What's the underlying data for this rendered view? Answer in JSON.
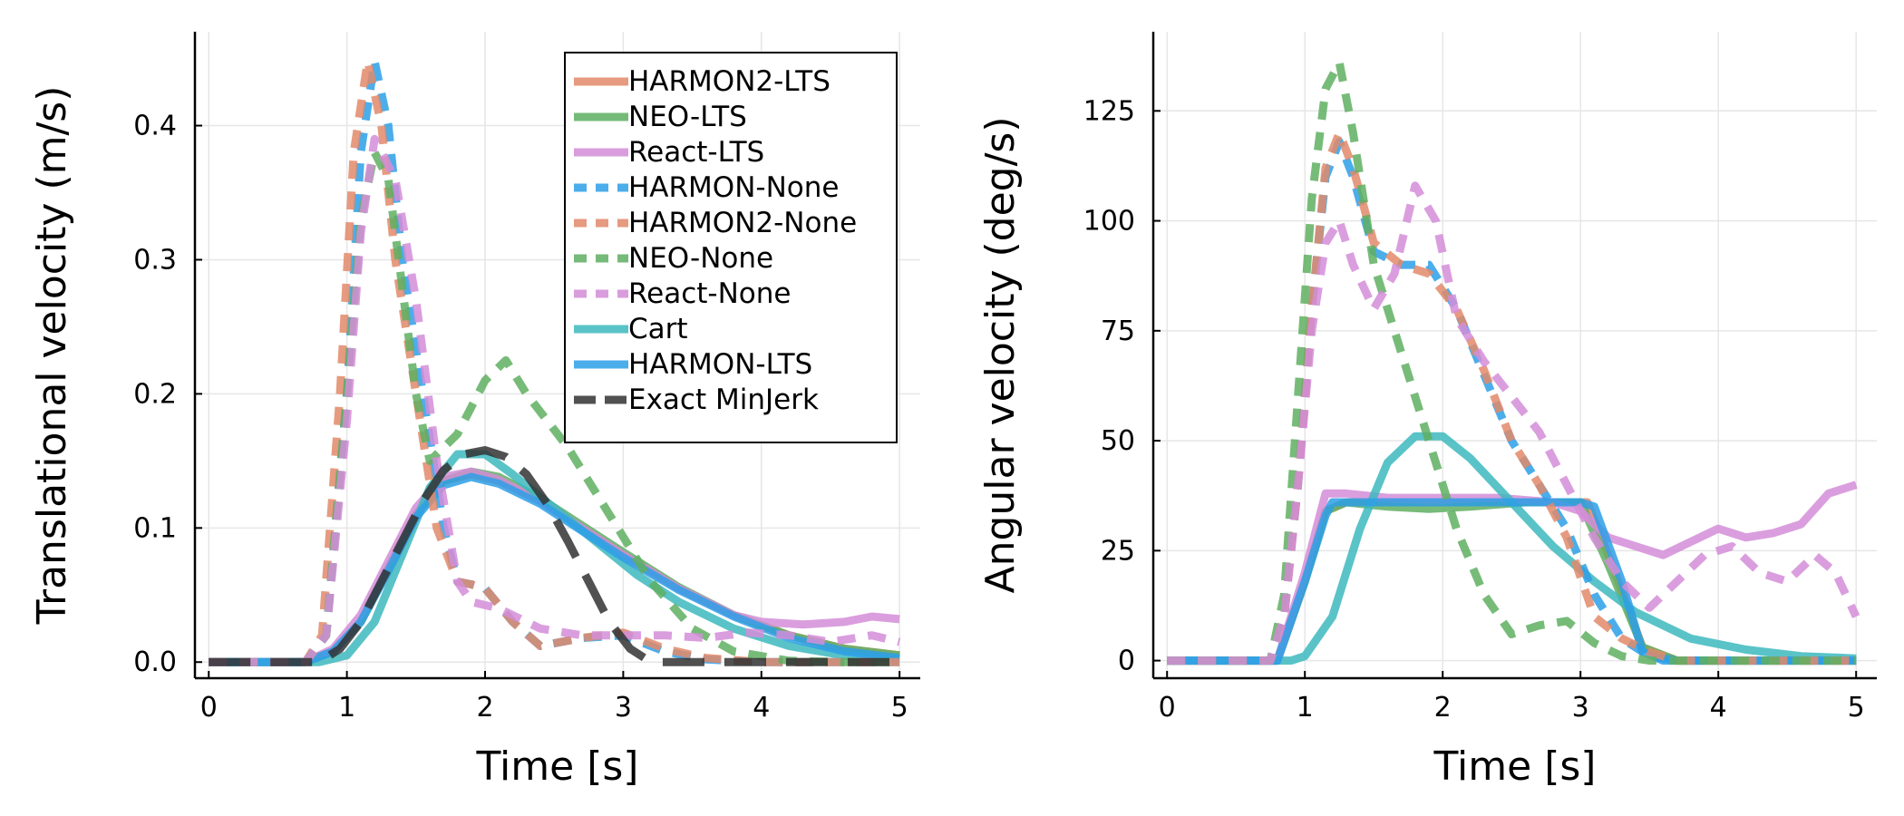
{
  "colors": {
    "HARMON2": "#E2896A",
    "NEO": "#5FAF62",
    "React": "#D38DD8",
    "HARMON": "#2D9FE8",
    "Cart": "#3DB9BE",
    "MinJerk": "#333333"
  },
  "chart_data": [
    {
      "type": "line",
      "xlabel": "Time [s]",
      "ylabel": "Translational velocity (m/s)",
      "xlim": [
        -0.1,
        5.15
      ],
      "ylim": [
        -0.012,
        0.47
      ],
      "xticks": [
        0,
        1,
        2,
        3,
        4,
        5
      ],
      "xtick_labels": [
        "0",
        "1",
        "2",
        "3",
        "4",
        "5"
      ],
      "yticks": [
        0.0,
        0.1,
        0.2,
        0.3,
        0.4
      ],
      "ytick_labels": [
        "0.0",
        "0.1",
        "0.2",
        "0.3",
        "0.4"
      ],
      "grid": true,
      "legend": {
        "position": "top-right",
        "entries": [
          {
            "label": "HARMON2-LTS",
            "color_key": "HARMON2",
            "dash": "solid"
          },
          {
            "label": "NEO-LTS",
            "color_key": "NEO",
            "dash": "solid"
          },
          {
            "label": "React-LTS",
            "color_key": "React",
            "dash": "solid"
          },
          {
            "label": "HARMON-None",
            "color_key": "HARMON",
            "dash": "dash"
          },
          {
            "label": "HARMON2-None",
            "color_key": "HARMON2",
            "dash": "dash"
          },
          {
            "label": "NEO-None",
            "color_key": "NEO",
            "dash": "dash"
          },
          {
            "label": "React-None",
            "color_key": "React",
            "dash": "dash"
          },
          {
            "label": "Cart",
            "color_key": "Cart",
            "dash": "solid"
          },
          {
            "label": "HARMON-LTS",
            "color_key": "HARMON",
            "dash": "solid"
          },
          {
            "label": "Exact MinJerk",
            "color_key": "MinJerk",
            "dash": "longdash"
          }
        ]
      },
      "series": [
        {
          "name": "HARMON2-LTS",
          "color_key": "HARMON2",
          "dash": "solid",
          "x": [
            0,
            0.7,
            0.9,
            1.1,
            1.3,
            1.5,
            1.7,
            1.9,
            2.1,
            2.4,
            2.7,
            3.0,
            3.4,
            3.8,
            4.2,
            4.6,
            5.0
          ],
          "y": [
            0,
            0,
            0.008,
            0.03,
            0.07,
            0.11,
            0.135,
            0.14,
            0.135,
            0.12,
            0.1,
            0.08,
            0.055,
            0.035,
            0.02,
            0.01,
            0.005
          ]
        },
        {
          "name": "NEO-LTS",
          "color_key": "NEO",
          "dash": "solid",
          "x": [
            0,
            0.7,
            0.9,
            1.1,
            1.3,
            1.5,
            1.7,
            1.9,
            2.1,
            2.4,
            2.7,
            3.0,
            3.4,
            3.8,
            4.2,
            4.6,
            5.0
          ],
          "y": [
            0,
            0,
            0.008,
            0.03,
            0.07,
            0.11,
            0.135,
            0.142,
            0.138,
            0.122,
            0.102,
            0.082,
            0.056,
            0.035,
            0.02,
            0.01,
            0.005
          ]
        },
        {
          "name": "React-LTS",
          "color_key": "React",
          "dash": "solid",
          "x": [
            0,
            0.7,
            0.9,
            1.1,
            1.3,
            1.5,
            1.7,
            1.9,
            2.1,
            2.4,
            2.7,
            3.0,
            3.4,
            3.8,
            4.0,
            4.3,
            4.6,
            4.8,
            5.0
          ],
          "y": [
            0,
            0,
            0.01,
            0.035,
            0.075,
            0.115,
            0.138,
            0.142,
            0.136,
            0.12,
            0.1,
            0.08,
            0.055,
            0.035,
            0.03,
            0.028,
            0.03,
            0.034,
            0.032
          ]
        },
        {
          "name": "Cart",
          "color_key": "Cart",
          "dash": "solid",
          "x": [
            0,
            0.8,
            1.0,
            1.2,
            1.4,
            1.6,
            1.8,
            2.0,
            2.2,
            2.5,
            2.8,
            3.1,
            3.4,
            3.8,
            4.2,
            4.6,
            5.0
          ],
          "y": [
            0,
            0,
            0.005,
            0.03,
            0.08,
            0.13,
            0.155,
            0.155,
            0.14,
            0.115,
            0.09,
            0.065,
            0.045,
            0.025,
            0.012,
            0.005,
            0.002
          ]
        },
        {
          "name": "HARMON-LTS",
          "color_key": "HARMON",
          "dash": "solid",
          "x": [
            0,
            0.7,
            0.9,
            1.1,
            1.3,
            1.5,
            1.7,
            1.9,
            2.1,
            2.4,
            2.7,
            3.0,
            3.4,
            3.8,
            4.2,
            4.6,
            5.0
          ],
          "y": [
            0,
            0,
            0.008,
            0.03,
            0.068,
            0.108,
            0.132,
            0.138,
            0.133,
            0.118,
            0.098,
            0.078,
            0.054,
            0.034,
            0.018,
            0.008,
            0.003
          ]
        },
        {
          "name": "HARMON-None",
          "color_key": "HARMON",
          "dash": "dash",
          "x": [
            0,
            0.7,
            0.85,
            1.0,
            1.1,
            1.2,
            1.3,
            1.4,
            1.55,
            1.7,
            1.8,
            1.9,
            2.0,
            2.2,
            2.4,
            2.7,
            3.0,
            3.3,
            3.6,
            4.0,
            4.5,
            5.0
          ],
          "y": [
            0,
            0,
            0.02,
            0.2,
            0.38,
            0.448,
            0.4,
            0.3,
            0.2,
            0.1,
            0.06,
            0.058,
            0.055,
            0.03,
            0.012,
            0.018,
            0.02,
            0.008,
            0.002,
            0,
            0,
            0
          ]
        },
        {
          "name": "HARMON2-None",
          "color_key": "HARMON2",
          "dash": "dash",
          "x": [
            0,
            0.7,
            0.82,
            0.95,
            1.05,
            1.15,
            1.25,
            1.35,
            1.5,
            1.65,
            1.8,
            1.9,
            2.0,
            2.2,
            2.4,
            2.7,
            3.0,
            3.3,
            3.6,
            4.0,
            4.5,
            5.0
          ],
          "y": [
            0,
            0,
            0.02,
            0.2,
            0.38,
            0.448,
            0.4,
            0.3,
            0.2,
            0.1,
            0.06,
            0.058,
            0.055,
            0.03,
            0.012,
            0.018,
            0.022,
            0.01,
            0.003,
            0,
            0,
            0
          ]
        },
        {
          "name": "NEO-None",
          "color_key": "NEO",
          "dash": "dash",
          "x": [
            0,
            0.7,
            0.85,
            1.0,
            1.1,
            1.2,
            1.3,
            1.4,
            1.5,
            1.6,
            1.8,
            2.0,
            2.15,
            2.3,
            2.6,
            2.9,
            3.2,
            3.5,
            3.8,
            4.2,
            4.6,
            5.0
          ],
          "y": [
            0,
            0,
            0.02,
            0.2,
            0.33,
            0.38,
            0.36,
            0.28,
            0.2,
            0.15,
            0.17,
            0.21,
            0.225,
            0.2,
            0.16,
            0.11,
            0.06,
            0.025,
            0.008,
            0.001,
            0,
            0
          ]
        },
        {
          "name": "React-None",
          "color_key": "React",
          "dash": "dash",
          "x": [
            0,
            0.7,
            0.85,
            1.0,
            1.1,
            1.2,
            1.35,
            1.5,
            1.65,
            1.8,
            1.9,
            2.1,
            2.4,
            2.7,
            3.0,
            3.3,
            3.6,
            3.9,
            4.2,
            4.5,
            4.8,
            5.0
          ],
          "y": [
            0,
            0,
            0.02,
            0.18,
            0.32,
            0.39,
            0.36,
            0.27,
            0.15,
            0.06,
            0.045,
            0.04,
            0.025,
            0.02,
            0.02,
            0.02,
            0.018,
            0.022,
            0.02,
            0.015,
            0.02,
            0.015
          ]
        },
        {
          "name": "Exact MinJerk",
          "color_key": "MinJerk",
          "dash": "longdash",
          "x": [
            0,
            0.8,
            0.95,
            1.1,
            1.25,
            1.4,
            1.55,
            1.7,
            1.85,
            2.0,
            2.15,
            2.3,
            2.45,
            2.6,
            2.75,
            2.9,
            3.05,
            3.2,
            3.6,
            4.0,
            4.5,
            5.0
          ],
          "y": [
            0,
            0,
            0.01,
            0.03,
            0.06,
            0.09,
            0.12,
            0.143,
            0.155,
            0.158,
            0.153,
            0.14,
            0.118,
            0.09,
            0.06,
            0.03,
            0.01,
            0,
            0,
            0,
            0,
            0
          ]
        }
      ]
    },
    {
      "type": "line",
      "xlabel": "Time [s]",
      "ylabel": "Angular velocity (deg/s)",
      "xlim": [
        -0.1,
        5.15
      ],
      "ylim": [
        -4,
        143
      ],
      "xticks": [
        0,
        1,
        2,
        3,
        4,
        5
      ],
      "xtick_labels": [
        "0",
        "1",
        "2",
        "3",
        "4",
        "5"
      ],
      "yticks": [
        0,
        25,
        50,
        75,
        100,
        125
      ],
      "ytick_labels": [
        "0",
        "25",
        "50",
        "75",
        "100",
        "125"
      ],
      "grid": true,
      "series": [
        {
          "name": "HARMON2-LTS",
          "color_key": "HARMON2",
          "dash": "solid",
          "x": [
            0,
            0.8,
            1.0,
            1.15,
            1.3,
            2.0,
            2.8,
            3.05,
            3.25,
            3.45,
            3.7,
            4.2,
            5.0
          ],
          "y": [
            0,
            0,
            18,
            34,
            36,
            36,
            36,
            36,
            20,
            3,
            0,
            0,
            0
          ]
        },
        {
          "name": "NEO-LTS",
          "color_key": "NEO",
          "dash": "solid",
          "x": [
            0,
            0.8,
            1.0,
            1.15,
            1.3,
            1.6,
            1.9,
            2.2,
            2.6,
            3.0,
            3.2,
            3.45,
            3.7,
            5.0
          ],
          "y": [
            0,
            0,
            18,
            34,
            36,
            35,
            34.5,
            35,
            36,
            36,
            22,
            3,
            0,
            0
          ]
        },
        {
          "name": "React-LTS",
          "color_key": "React",
          "dash": "solid",
          "x": [
            0,
            0.8,
            1.0,
            1.15,
            1.3,
            1.6,
            2.0,
            2.4,
            2.8,
            3.0,
            3.2,
            3.4,
            3.6,
            3.8,
            4.0,
            4.2,
            4.4,
            4.6,
            4.8,
            5.0
          ],
          "y": [
            0,
            0,
            20,
            38,
            38,
            37,
            37,
            37,
            36,
            34,
            28,
            26,
            24,
            27,
            30,
            28,
            29,
            31,
            38,
            40
          ]
        },
        {
          "name": "Cart",
          "color_key": "Cart",
          "dash": "solid",
          "x": [
            0,
            0.9,
            1.0,
            1.2,
            1.4,
            1.6,
            1.8,
            2.0,
            2.2,
            2.5,
            2.8,
            3.1,
            3.4,
            3.8,
            4.2,
            4.6,
            5.0
          ],
          "y": [
            0,
            0,
            1,
            10,
            30,
            45,
            51,
            51,
            46,
            36,
            26,
            18,
            11,
            5,
            2.5,
            1,
            0.5
          ]
        },
        {
          "name": "HARMON-LTS",
          "color_key": "HARMON",
          "dash": "solid",
          "x": [
            0,
            0.8,
            1.0,
            1.15,
            1.2,
            2.0,
            3.0,
            3.1,
            3.3,
            3.45,
            3.6,
            5.0
          ],
          "y": [
            0,
            0,
            18,
            33,
            36,
            36,
            36,
            35,
            18,
            2,
            0,
            0
          ]
        },
        {
          "name": "HARMON-None",
          "color_key": "HARMON",
          "dash": "dash",
          "x": [
            0,
            0.75,
            0.85,
            0.95,
            1.05,
            1.15,
            1.25,
            1.35,
            1.5,
            1.7,
            1.9,
            2.1,
            2.3,
            2.5,
            2.7,
            2.9,
            3.1,
            3.3,
            3.5,
            3.7,
            4.0,
            5.0
          ],
          "y": [
            0,
            0,
            10,
            40,
            80,
            110,
            118,
            110,
            93,
            90,
            90,
            80,
            65,
            50,
            40,
            30,
            15,
            5,
            1,
            0,
            0,
            0
          ]
        },
        {
          "name": "HARMON2-None",
          "color_key": "HARMON2",
          "dash": "dash",
          "x": [
            0,
            0.75,
            0.85,
            0.95,
            1.05,
            1.15,
            1.25,
            1.35,
            1.5,
            1.7,
            1.9,
            2.1,
            2.3,
            2.5,
            2.7,
            2.9,
            3.1,
            3.3,
            3.5,
            3.7,
            4.0,
            5.0
          ],
          "y": [
            0,
            0,
            10,
            40,
            80,
            112,
            120,
            112,
            95,
            90,
            88,
            80,
            66,
            50,
            40,
            28,
            10,
            5,
            2,
            0,
            0,
            0
          ]
        },
        {
          "name": "NEO-None",
          "color_key": "NEO",
          "dash": "dash",
          "x": [
            0,
            0.75,
            0.85,
            0.95,
            1.05,
            1.15,
            1.25,
            1.35,
            1.5,
            1.7,
            1.9,
            2.1,
            2.3,
            2.5,
            2.7,
            2.9,
            3.1,
            3.3,
            3.5,
            3.7,
            4.0,
            5.0
          ],
          "y": [
            0,
            0,
            15,
            60,
            105,
            130,
            136,
            120,
            90,
            70,
            50,
            30,
            15,
            6,
            8,
            9,
            4,
            1,
            0,
            0,
            0,
            0
          ]
        },
        {
          "name": "React-None",
          "color_key": "React",
          "dash": "dash",
          "x": [
            0,
            0.75,
            0.85,
            0.95,
            1.05,
            1.15,
            1.25,
            1.35,
            1.5,
            1.65,
            1.8,
            1.95,
            2.1,
            2.3,
            2.5,
            2.7,
            2.9,
            3.1,
            3.3,
            3.5,
            3.7,
            3.9,
            4.1,
            4.3,
            4.5,
            4.7,
            4.85,
            5.0
          ],
          "y": [
            0,
            0,
            10,
            40,
            75,
            95,
            100,
            90,
            80,
            88,
            108,
            100,
            78,
            68,
            60,
            52,
            40,
            28,
            18,
            12,
            18,
            24,
            26,
            20,
            18,
            24,
            20,
            10
          ]
        }
      ]
    }
  ]
}
